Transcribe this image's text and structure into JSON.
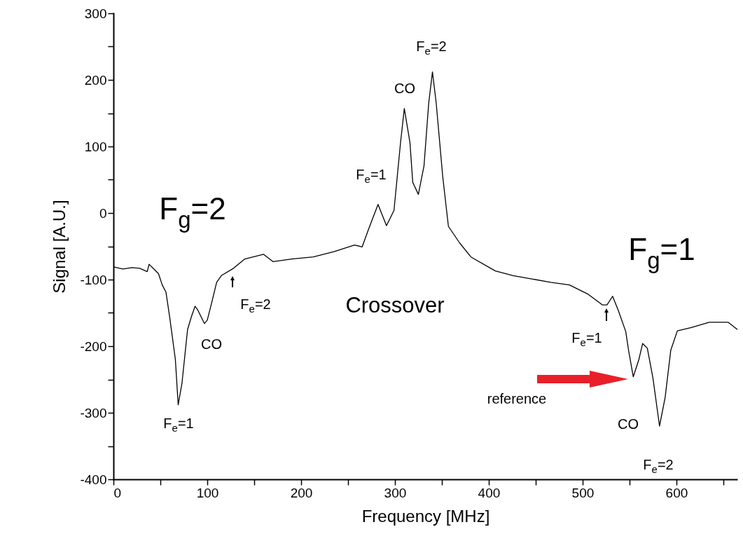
{
  "chart_data": {
    "type": "line",
    "xlabel": "Frequency [MHz]",
    "ylabel": "Signal [A.U.]",
    "xlim": [
      0,
      665
    ],
    "ylim": [
      -400,
      300
    ],
    "xticks": [
      0,
      {
        "value": 50,
        "label": null
      },
      100,
      {
        "value": 150,
        "label": null
      },
      200,
      {
        "value": 250,
        "label": null
      },
      300,
      {
        "value": 350,
        "label": null
      },
      400,
      {
        "value": 450,
        "label": null
      },
      500,
      {
        "value": 550,
        "label": null
      },
      600,
      {
        "value": 650,
        "label": null
      }
    ],
    "yticks": [
      -400,
      {
        "value": -350,
        "label": null
      },
      -300,
      {
        "value": -250,
        "label": null
      },
      -200,
      {
        "value": -150,
        "label": null
      },
      -100,
      {
        "value": -50,
        "label": null
      },
      0,
      {
        "value": 50,
        "label": null
      },
      100,
      {
        "value": 150,
        "label": null
      },
      200,
      {
        "value": 250,
        "label": null
      },
      300
    ],
    "grid": false,
    "marker": "none",
    "line_style": "solid",
    "x": [
      0,
      10,
      20,
      28,
      36,
      38,
      43,
      48,
      52,
      56,
      60,
      66,
      69,
      73,
      79,
      83,
      87,
      90,
      97,
      100,
      105,
      110,
      115,
      128,
      140,
      160,
      170,
      190,
      213,
      235,
      257,
      265,
      272,
      282,
      291,
      299,
      306,
      310,
      316,
      319,
      325,
      331,
      336,
      340,
      344,
      351,
      357,
      369,
      381,
      407,
      426,
      446,
      466,
      486,
      506,
      521,
      526,
      532,
      538,
      546,
      549,
      554,
      560,
      564,
      569,
      575,
      582,
      588,
      594,
      601,
      616,
      635,
      655,
      665
    ],
    "series": [
      {
        "color": "#000000",
        "values": [
          -81,
          -84,
          -82,
          -83,
          -88,
          -77,
          -84,
          -91,
          -108,
          -119,
          -157,
          -220,
          -288,
          -256,
          -175,
          -156,
          -140,
          -146,
          -166,
          -161,
          -133,
          -104,
          -94,
          -83,
          -69,
          -62,
          -73,
          -69,
          -66,
          -58,
          -48,
          -51,
          -24,
          13,
          -19,
          4,
          106,
          157,
          106,
          46,
          28,
          71,
          165,
          212,
          165,
          54,
          -20,
          -45,
          -66,
          -87,
          -94,
          -99,
          -104,
          -108,
          -122,
          -138,
          -138,
          -125,
          -146,
          -178,
          -206,
          -246,
          -220,
          -196,
          -203,
          -248,
          -320,
          -277,
          -206,
          -177,
          -172,
          -164,
          -164,
          -175
        ]
      }
    ],
    "annotations": [
      "F$_{g}$=2",
      "F$_{g}$=1",
      "Crossover",
      "F$_{e}$=1",
      "CO",
      "F$_{e}$=2",
      "F$_{e}$=1",
      "CO",
      "F$_{e}$=2",
      "F$_{e}$=1",
      "reference",
      "CO",
      "F$_{e}$=2"
    ]
  }
}
